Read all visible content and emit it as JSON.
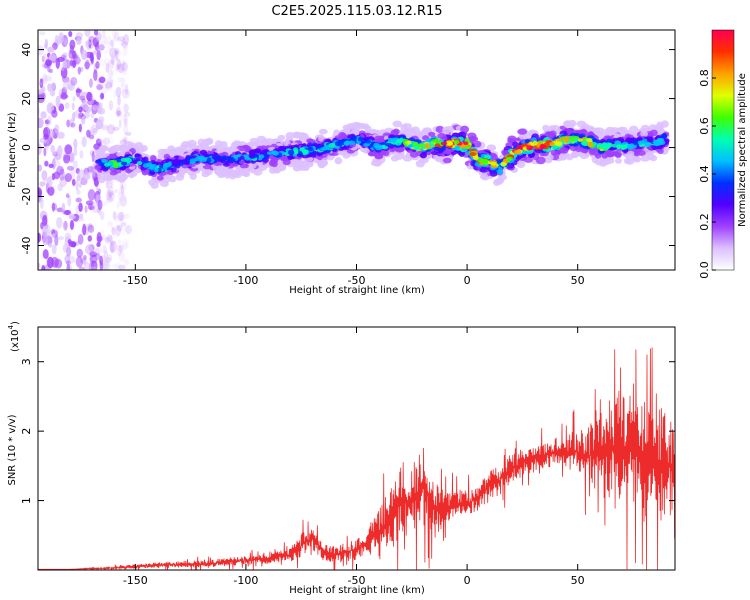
{
  "title": "C2E5.2025.115.03.12.R15",
  "colors": {
    "snr_line": "#ee2b2b",
    "spectrum_low": "#c080ff",
    "spectrum_high": "#ff0000"
  },
  "chart_data": [
    {
      "type": "heatmap",
      "xlabel": "Height of straight line (km)",
      "ylabel": "Frequency (Hz)",
      "xlim": [
        -194,
        94
      ],
      "ylim": [
        -50,
        48
      ],
      "xticks": [
        -150,
        -100,
        -50,
        0,
        50
      ],
      "yticks": [
        -40,
        -20,
        0,
        20,
        40
      ],
      "xtick_labels": [
        "-150",
        "-100",
        "-50",
        "0",
        "50"
      ],
      "ytick_labels": [
        "-40",
        "-20",
        "0",
        "20",
        "40"
      ],
      "grid": false,
      "colorbar": {
        "label": "Normalized spectral amplitude",
        "range": [
          0,
          1
        ],
        "ticks": [
          0,
          0.2,
          0.4,
          0.6,
          0.8
        ],
        "tick_labels": [
          "0.0",
          "0.2",
          "0.4",
          "0.6",
          "0.8"
        ],
        "palette": [
          "#ffffff",
          "#dcc0ff",
          "#a040ff",
          "#5000ff",
          "#0030ff",
          "#00c0ff",
          "#00ffb0",
          "#40ff00",
          "#e0ff00",
          "#ffa000",
          "#ff3000",
          "#ff0050"
        ]
      },
      "ridge": {
        "x": [
          -167,
          -160,
          -150,
          -140,
          -130,
          -120,
          -110,
          -100,
          -90,
          -80,
          -70,
          -60,
          -50,
          -45,
          -40,
          -35,
          -30,
          -25,
          -20,
          -15,
          -10,
          -5,
          0,
          5,
          10,
          15,
          20,
          25,
          30,
          35,
          40,
          45,
          50,
          55,
          60,
          65,
          70,
          75,
          80,
          85,
          90
        ],
        "y": [
          -6,
          -7,
          -5,
          -9,
          -6,
          -4,
          -5,
          -4,
          -3,
          -2,
          -1,
          1,
          3,
          2,
          0,
          2,
          3,
          1,
          0,
          2,
          1,
          2,
          1,
          -5,
          -6,
          -8,
          -3,
          0,
          1,
          1,
          2,
          3,
          3,
          2,
          0,
          1,
          1,
          1,
          2,
          2,
          3
        ],
        "amplitude": [
          0.35,
          0.55,
          0.4,
          0.5,
          0.35,
          0.4,
          0.35,
          0.45,
          0.4,
          0.45,
          0.45,
          0.5,
          0.45,
          0.4,
          0.45,
          0.5,
          0.55,
          0.6,
          0.7,
          0.75,
          0.85,
          0.9,
          0.95,
          0.85,
          0.8,
          0.7,
          0.85,
          0.9,
          0.9,
          0.85,
          0.8,
          0.75,
          0.7,
          0.7,
          0.6,
          0.55,
          0.5,
          0.5,
          0.45,
          0.45,
          0.5
        ]
      },
      "noise_region_x": [
        -194,
        -165
      ]
    },
    {
      "type": "line",
      "xlabel": "Height of straight line (km)",
      "ylabel": "SNR (10 * v/v)",
      "scale_label": "(x10",
      "scale_exp": "4",
      "scale_close": ")",
      "xlim": [
        -194,
        94
      ],
      "ylim": [
        0,
        3.5
      ],
      "xticks": [
        -150,
        -100,
        -50,
        0,
        50
      ],
      "yticks": [
        1,
        2,
        3
      ],
      "xtick_labels": [
        "-150",
        "-100",
        "-50",
        "0",
        "50"
      ],
      "ytick_labels": [
        "1",
        "2",
        "3"
      ],
      "grid": false,
      "series": [
        {
          "x": [
            -194,
            -180,
            -170,
            -160,
            -150,
            -140,
            -130,
            -120,
            -110,
            -100,
            -90,
            -80,
            -75,
            -70,
            -65,
            -60,
            -55,
            -50,
            -45,
            -40,
            -35,
            -30,
            -25,
            -20,
            -15,
            -10,
            -5,
            0,
            5,
            10,
            15,
            20,
            25,
            30,
            35,
            40,
            45,
            50,
            55,
            60,
            65,
            70,
            75,
            80,
            85,
            90,
            94
          ],
          "y": [
            0.01,
            0.01,
            0.02,
            0.03,
            0.05,
            0.07,
            0.08,
            0.09,
            0.11,
            0.14,
            0.17,
            0.22,
            0.35,
            0.45,
            0.25,
            0.22,
            0.25,
            0.3,
            0.4,
            0.55,
            0.75,
            0.95,
            1.0,
            1.2,
            0.9,
            0.85,
            0.95,
            0.95,
            1.05,
            1.2,
            1.3,
            1.45,
            1.55,
            1.6,
            1.65,
            1.7,
            1.7,
            1.7,
            1.65,
            1.7,
            1.75,
            1.7,
            1.7,
            1.6,
            1.55,
            1.55,
            1.5
          ],
          "spread": [
            0.0,
            0.0,
            0.01,
            0.02,
            0.03,
            0.04,
            0.05,
            0.05,
            0.06,
            0.07,
            0.08,
            0.1,
            0.18,
            0.15,
            0.12,
            0.12,
            0.14,
            0.16,
            0.22,
            0.3,
            0.45,
            0.55,
            0.5,
            0.6,
            0.45,
            0.25,
            0.22,
            0.2,
            0.22,
            0.22,
            0.22,
            0.2,
            0.2,
            0.18,
            0.2,
            0.22,
            0.25,
            0.3,
            0.45,
            0.55,
            0.75,
            0.8,
            0.85,
            0.85,
            0.8,
            0.8,
            0.75
          ]
        }
      ]
    }
  ]
}
